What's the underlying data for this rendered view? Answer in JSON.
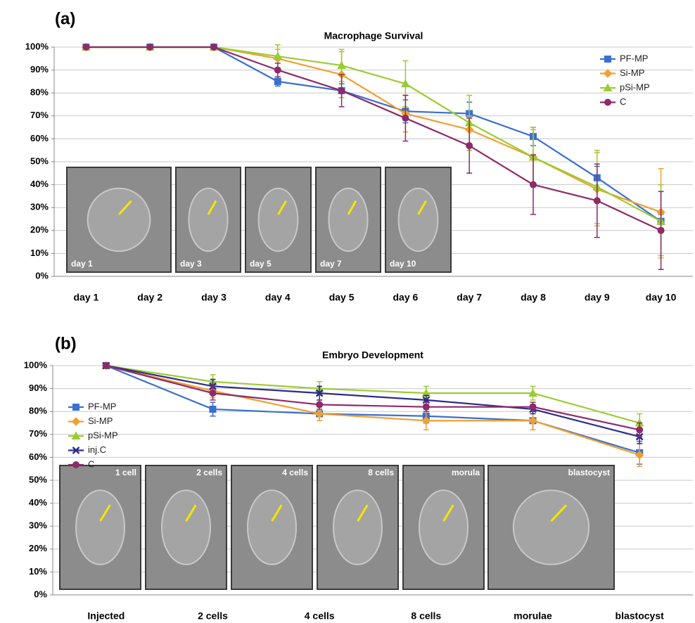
{
  "chart_data": [
    {
      "type": "line",
      "panel_label": "(a)",
      "title": "Macrophage Survival",
      "categories": [
        "day 1",
        "day 2",
        "day 3",
        "day 4",
        "day 5",
        "day 6",
        "day 7",
        "day 8",
        "day 9",
        "day 10"
      ],
      "series": [
        {
          "name": "PF-MP",
          "color": "#3a6fd0",
          "marker": "square",
          "values": [
            100,
            100,
            100,
            85,
            81,
            72,
            71,
            61,
            43,
            24
          ],
          "errors": [
            0,
            0,
            0,
            2,
            3,
            5,
            5,
            4,
            5,
            3
          ]
        },
        {
          "name": "Si-MP",
          "color": "#f0a030",
          "marker": "diamond",
          "values": [
            100,
            100,
            100,
            95,
            88,
            71,
            64,
            52,
            38,
            28
          ],
          "errors": [
            0,
            0,
            0,
            4,
            10,
            8,
            6,
            12,
            16,
            19
          ]
        },
        {
          "name": "pSi-MP",
          "color": "#9acd32",
          "marker": "triangle",
          "values": [
            100,
            100,
            100,
            96,
            92,
            84,
            67,
            52,
            39,
            24
          ],
          "errors": [
            0,
            0,
            0,
            5,
            7,
            10,
            12,
            13,
            16,
            16
          ]
        },
        {
          "name": "C",
          "color": "#8e2a6a",
          "marker": "circle",
          "values": [
            100,
            100,
            100,
            90,
            81,
            69,
            57,
            40,
            33,
            20
          ],
          "errors": [
            0,
            0,
            0,
            3,
            7,
            10,
            12,
            13,
            16,
            17
          ]
        }
      ],
      "ylim": [
        0,
        100
      ],
      "yticks": [
        {
          "value": 0,
          "label": "0%"
        },
        {
          "value": 10,
          "label": "10%"
        },
        {
          "value": 20,
          "label": "20%"
        },
        {
          "value": 30,
          "label": "30%"
        },
        {
          "value": 40,
          "label": "40%"
        },
        {
          "value": 50,
          "label": "50%"
        },
        {
          "value": 60,
          "label": "60%"
        },
        {
          "value": 70,
          "label": "70%"
        },
        {
          "value": 80,
          "label": "80%"
        },
        {
          "value": 90,
          "label": "90%"
        },
        {
          "value": 100,
          "label": "100%"
        }
      ],
      "grid": true,
      "legend_position": "upper right",
      "insets": [
        "day 1",
        "day 3",
        "day 5",
        "day 7",
        "day 10"
      ]
    },
    {
      "type": "line",
      "panel_label": "(b)",
      "title": "Embryo Development",
      "categories": [
        "Injected",
        "2 cells",
        "4 cells",
        "8 cells",
        "morulae",
        "blastocyst"
      ],
      "series": [
        {
          "name": "PF-MP",
          "color": "#3a6fd0",
          "marker": "square",
          "values": [
            100,
            81,
            79,
            78,
            76,
            62
          ],
          "errors": [
            0,
            3,
            3,
            3,
            4,
            5
          ]
        },
        {
          "name": "Si-MP",
          "color": "#f0a030",
          "marker": "diamond",
          "values": [
            100,
            89,
            79,
            76,
            76,
            61
          ],
          "errors": [
            0,
            3,
            3,
            4,
            4,
            5
          ]
        },
        {
          "name": "pSi-MP",
          "color": "#9acd32",
          "marker": "triangle",
          "values": [
            100,
            93,
            90,
            88,
            88,
            75
          ],
          "errors": [
            0,
            3,
            3,
            3,
            3,
            4
          ]
        },
        {
          "name": "inj.C",
          "color": "#2c2c8c",
          "marker": "x",
          "values": [
            100,
            91,
            88,
            85,
            81,
            69
          ],
          "errors": [
            0,
            3,
            3,
            2,
            2,
            3
          ]
        },
        {
          "name": "C",
          "color": "#8e2a6a",
          "marker": "circle",
          "values": [
            100,
            88,
            83,
            82,
            82,
            72
          ],
          "errors": [
            0,
            3,
            2,
            2,
            2,
            3
          ]
        }
      ],
      "ylim": [
        0,
        100
      ],
      "yticks": [
        {
          "value": 0,
          "label": "0%"
        },
        {
          "value": 10,
          "label": "10%"
        },
        {
          "value": 20,
          "label": "20%"
        },
        {
          "value": 30,
          "label": "30%"
        },
        {
          "value": 40,
          "label": "40%"
        },
        {
          "value": 50,
          "label": "50%"
        },
        {
          "value": 60,
          "label": "60%"
        },
        {
          "value": 70,
          "label": "70%"
        },
        {
          "value": 80,
          "label": "80%"
        },
        {
          "value": 90,
          "label": "90%"
        },
        {
          "value": 100,
          "label": "100%"
        }
      ],
      "grid": true,
      "legend_position": "center left",
      "insets": [
        "1 cell",
        "2 cells",
        "4 cells",
        "8 cells",
        "morula",
        "blastocyst"
      ]
    }
  ]
}
